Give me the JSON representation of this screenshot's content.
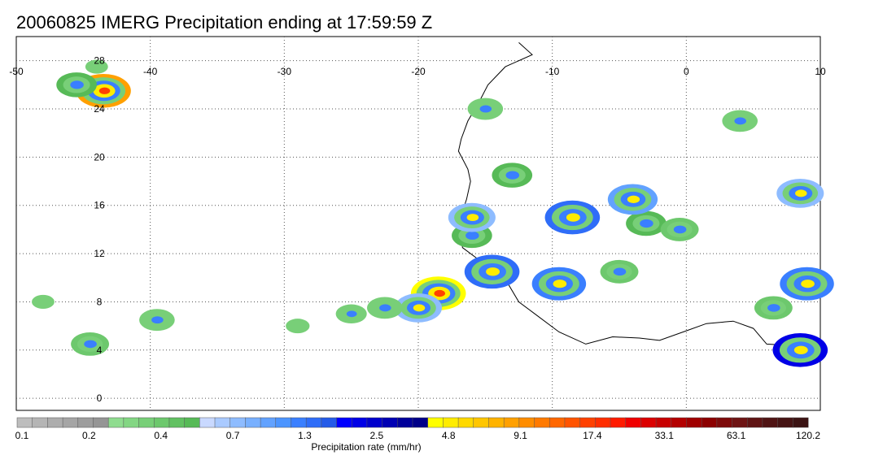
{
  "title": "20060825 IMERG Precipitation ending at 17:59:59 Z",
  "map": {
    "lon_range": [
      -50,
      10
    ],
    "lat_range": [
      -1,
      30
    ],
    "lon_ticks": [
      {
        "value": -50,
        "label": "-50"
      },
      {
        "value": -40,
        "label": "-40"
      },
      {
        "value": -30,
        "label": "-30"
      },
      {
        "value": -20,
        "label": "-20"
      },
      {
        "value": -10,
        "label": "-10"
      },
      {
        "value": 0,
        "label": "0"
      },
      {
        "value": 10,
        "label": "10"
      }
    ],
    "lat_ticks": [
      {
        "value": 0,
        "label": "0"
      },
      {
        "value": 4,
        "label": "4"
      },
      {
        "value": 8,
        "label": "8"
      },
      {
        "value": 12,
        "label": "12"
      },
      {
        "value": 16,
        "label": "16"
      },
      {
        "value": 20,
        "label": "20"
      },
      {
        "value": 24,
        "label": "24"
      },
      {
        "value": 28,
        "label": "28"
      }
    ],
    "gridlines": true,
    "precip_regions": [
      {
        "lon": -43.5,
        "lat": 25.5,
        "rate": 60
      },
      {
        "lon": -45.5,
        "lat": 26.0,
        "rate": 3
      },
      {
        "lon": -44.0,
        "lat": 27.5,
        "rate": 0.4
      },
      {
        "lon": -18.5,
        "lat": 8.7,
        "rate": 30
      },
      {
        "lon": -20.0,
        "lat": 7.5,
        "rate": 5
      },
      {
        "lon": -22.5,
        "lat": 7.5,
        "rate": 2
      },
      {
        "lon": -25.0,
        "lat": 7.0,
        "rate": 1.3
      },
      {
        "lon": -29.0,
        "lat": 6.0,
        "rate": 0.5
      },
      {
        "lon": -14.5,
        "lat": 10.5,
        "rate": 10
      },
      {
        "lon": -16.0,
        "lat": 13.5,
        "rate": 3
      },
      {
        "lon": -16.0,
        "lat": 15.0,
        "rate": 5
      },
      {
        "lon": -15.0,
        "lat": 24.0,
        "rate": 2
      },
      {
        "lon": -13.0,
        "lat": 18.5,
        "rate": 3
      },
      {
        "lon": -8.5,
        "lat": 15.0,
        "rate": 10
      },
      {
        "lon": -5.0,
        "lat": 10.5,
        "rate": 2.5
      },
      {
        "lon": -3.0,
        "lat": 14.5,
        "rate": 3
      },
      {
        "lon": -4.0,
        "lat": 16.5,
        "rate": 6
      },
      {
        "lon": -0.5,
        "lat": 14.0,
        "rate": 2.5
      },
      {
        "lon": 4.0,
        "lat": 23.0,
        "rate": 2
      },
      {
        "lon": 8.5,
        "lat": 17.0,
        "rate": 5
      },
      {
        "lon": 9.0,
        "lat": 9.5,
        "rate": 8
      },
      {
        "lon": 8.5,
        "lat": 4.0,
        "rate": 15
      },
      {
        "lon": 6.5,
        "lat": 7.5,
        "rate": 2.5
      },
      {
        "lon": -9.5,
        "lat": 9.5,
        "rate": 8
      },
      {
        "lon": -48.0,
        "lat": 8.0,
        "rate": 0.4
      },
      {
        "lon": -44.5,
        "lat": 4.5,
        "rate": 2.5
      },
      {
        "lon": -39.5,
        "lat": 6.5,
        "rate": 2
      }
    ]
  },
  "colorbar": {
    "title": "Precipitation rate (mm/hr)",
    "tick_labels": [
      "0.1",
      "0.2",
      "0.4",
      "0.7",
      "1.3",
      "2.5",
      "4.8",
      "9.1",
      "17.4",
      "33.1",
      "63.1",
      "120.2"
    ],
    "colors": [
      "#bdbdbd",
      "#b5b5b5",
      "#adadad",
      "#a5a5a5",
      "#9d9d9d",
      "#959595",
      "#8fdc8f",
      "#83d683",
      "#78cf78",
      "#6dc86d",
      "#62c162",
      "#57ba57",
      "#c9d9ff",
      "#aacaff",
      "#8ebcff",
      "#78b0ff",
      "#62a2ff",
      "#4c95ff",
      "#3a7fff",
      "#2f6df8",
      "#245be8",
      "#0000ff",
      "#0000e6",
      "#0000cc",
      "#0000b3",
      "#00009a",
      "#000088",
      "#ffff00",
      "#ffec00",
      "#ffd900",
      "#ffc600",
      "#ffb300",
      "#ffa000",
      "#ff8d00",
      "#ff7a00",
      "#ff6700",
      "#ff5400",
      "#ff4100",
      "#ff2e00",
      "#ff1b00",
      "#f00000",
      "#dc0000",
      "#c80000",
      "#b40000",
      "#a00000",
      "#8c0000",
      "#7d0a0a",
      "#6e1414",
      "#5f1414",
      "#501414",
      "#461414",
      "#3c1414"
    ]
  }
}
